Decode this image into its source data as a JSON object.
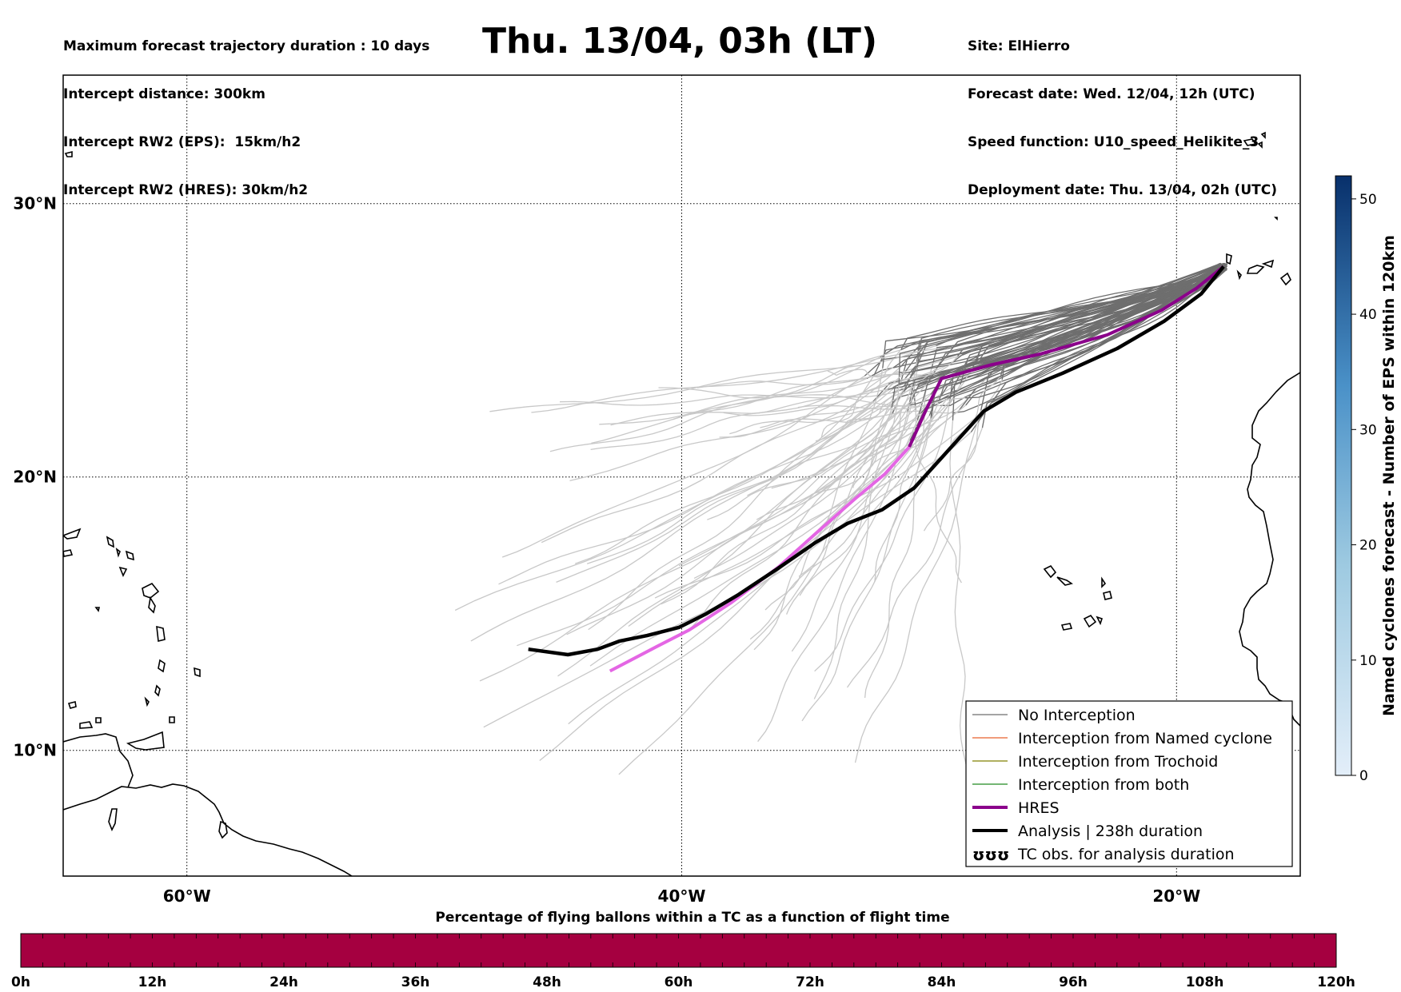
{
  "header": {
    "title": "Thu. 13/04, 03h (LT)",
    "left_lines": [
      "Maximum forecast trajectory duration : 10 days",
      "Intercept distance: 300km",
      "Intercept RW2 (EPS):  15km/h2",
      "Intercept RW2 (HRES): 30km/h2"
    ],
    "right_lines": [
      "Site: ElHierro",
      "Forecast date: Wed. 12/04, 12h (UTC)",
      "Speed function: U10_speed_Helikite_3",
      "Deployment date: Thu. 13/04, 02h (UTC)"
    ]
  },
  "map": {
    "lat_labels": [
      "30°N",
      "20°N",
      "10°N"
    ],
    "lon_labels": [
      "60°W",
      "40°W",
      "20°W"
    ],
    "lat_values": [
      30,
      20,
      10
    ],
    "lon_values": [
      -60,
      -40,
      -20
    ],
    "extent": {
      "lon_min": -65,
      "lon_max": -15,
      "lat_min": 5.4,
      "lat_max": 34.7
    },
    "site": {
      "lon": -18.1,
      "lat": 27.7
    },
    "hres_track": [
      [
        -18.1,
        27.7
      ],
      [
        -19.2,
        26.9
      ],
      [
        -20.6,
        26.1
      ],
      [
        -22.8,
        25.2
      ],
      [
        -25.5,
        24.5
      ],
      [
        -27.5,
        24.1
      ],
      [
        -29.5,
        23.6
      ],
      [
        -30.1,
        22.5
      ],
      [
        -30.8,
        21.1
      ],
      [
        -31.8,
        20.1
      ],
      [
        -33.0,
        19.2
      ],
      [
        -34.5,
        18.0
      ],
      [
        -36.1,
        16.7
      ],
      [
        -38.0,
        15.4
      ],
      [
        -39.7,
        14.4
      ],
      [
        -41.0,
        13.8
      ],
      [
        -42.9,
        12.9
      ]
    ],
    "analysis_track": [
      [
        -18.1,
        27.7
      ],
      [
        -19.0,
        26.7
      ],
      [
        -20.5,
        25.7
      ],
      [
        -22.4,
        24.7
      ],
      [
        -24.6,
        23.8
      ],
      [
        -26.5,
        23.1
      ],
      [
        -27.8,
        22.4
      ],
      [
        -28.6,
        21.6
      ],
      [
        -29.6,
        20.6
      ],
      [
        -30.6,
        19.6
      ],
      [
        -31.9,
        18.8
      ],
      [
        -33.3,
        18.3
      ],
      [
        -34.6,
        17.6
      ],
      [
        -36.2,
        16.6
      ],
      [
        -37.7,
        15.7
      ],
      [
        -39.0,
        15.0
      ],
      [
        -40.1,
        14.5
      ],
      [
        -41.4,
        14.2
      ],
      [
        -42.5,
        14.0
      ],
      [
        -43.4,
        13.7
      ],
      [
        -44.6,
        13.5
      ],
      [
        -46.2,
        13.7
      ]
    ],
    "colors": {
      "no_interception": "#6e6e6e",
      "far_ensemble": "#c8c8c8",
      "named_cyclone": "#e8602c",
      "trochoid": "#808000",
      "both": "#228b22",
      "hres_near": "#8b008b",
      "hres_far": "#e466e4",
      "analysis": "#000000"
    }
  },
  "legend": {
    "items": [
      {
        "label": "No Interception",
        "color": "#6e6e6e",
        "style": "thin"
      },
      {
        "label": "Interception from Named cyclone",
        "color": "#e8602c",
        "style": "thin"
      },
      {
        "label": "Interception from Trochoid",
        "color": "#808000",
        "style": "thin"
      },
      {
        "label": "Interception from both",
        "color": "#228b22",
        "style": "thin"
      },
      {
        "label": "HRES",
        "color": "#8b008b",
        "style": "thick"
      },
      {
        "label": "Analysis | 238h duration",
        "color": "#000000",
        "style": "thick"
      },
      {
        "label": "TC obs. for analysis duration",
        "color": "#000000",
        "style": "symbol"
      }
    ],
    "symbol_glyph": "ʊʊʊ"
  },
  "colorbar": {
    "label": "Named cyclones forecast - Number of EPS within 120km",
    "ticks": [
      "0",
      "10",
      "20",
      "30",
      "40",
      "50"
    ],
    "tick_values": [
      0,
      10,
      20,
      30,
      40,
      50
    ],
    "max": 52,
    "color_low": "#e3eef9",
    "color_high": "#08306b"
  },
  "bottom_bar": {
    "title": "Percentage of flying ballons within a TC as a function of flight time",
    "ticks": [
      "0h",
      "12h",
      "24h",
      "36h",
      "48h",
      "60h",
      "72h",
      "84h",
      "96h",
      "108h",
      "120h"
    ],
    "fill_color": "#a50040",
    "percentage_all": 0
  }
}
